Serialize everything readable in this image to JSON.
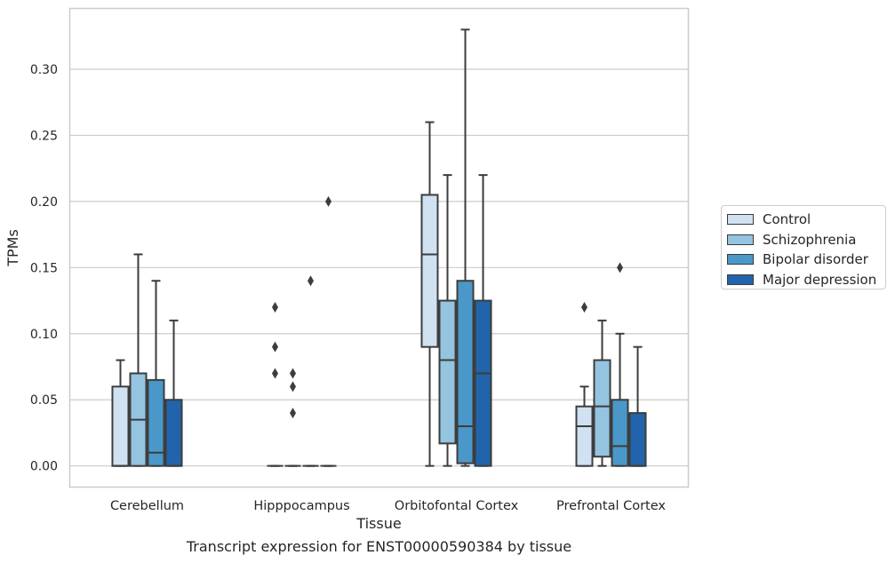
{
  "caption": "Transcript expression for ENST00000590384 by tissue",
  "chart_data": {
    "type": "box",
    "title": "",
    "xlabel": "Tissue",
    "ylabel": "TPMs",
    "ylim": [
      -0.016,
      0.346
    ],
    "yticks": [
      0.0,
      0.05,
      0.1,
      0.15,
      0.2,
      0.25,
      0.3
    ],
    "ytick_labels": [
      "0.00",
      "0.05",
      "0.10",
      "0.15",
      "0.20",
      "0.25",
      "0.30"
    ],
    "grid": true,
    "legend_position": "right",
    "categories": [
      "Cerebellum",
      "Hipppocampus",
      "Orbitofontal Cortex",
      "Prefrontal Cortex"
    ],
    "series": [
      {
        "name": "Control",
        "color": "#d0e1f2",
        "boxes": [
          {
            "whislo": 0.0,
            "q1": 0.0,
            "med": 0.0,
            "q3": 0.06,
            "whishi": 0.08,
            "fliers": []
          },
          {
            "whislo": 0.0,
            "q1": 0.0,
            "med": 0.0,
            "q3": 0.0,
            "whishi": 0.0,
            "fliers": [
              0.07,
              0.09,
              0.12
            ]
          },
          {
            "whislo": 0.0,
            "q1": 0.09,
            "med": 0.16,
            "q3": 0.205,
            "whishi": 0.26,
            "fliers": []
          },
          {
            "whislo": 0.0,
            "q1": 0.0,
            "med": 0.03,
            "q3": 0.045,
            "whishi": 0.06,
            "fliers": [
              0.12
            ]
          }
        ]
      },
      {
        "name": "Schizophrenia",
        "color": "#94c4df",
        "boxes": [
          {
            "whislo": 0.0,
            "q1": 0.0,
            "med": 0.035,
            "q3": 0.07,
            "whishi": 0.16,
            "fliers": []
          },
          {
            "whislo": 0.0,
            "q1": 0.0,
            "med": 0.0,
            "q3": 0.0,
            "whishi": 0.0,
            "fliers": [
              0.04,
              0.06,
              0.07
            ]
          },
          {
            "whislo": 0.0,
            "q1": 0.017,
            "med": 0.08,
            "q3": 0.125,
            "whishi": 0.22,
            "fliers": []
          },
          {
            "whislo": 0.0,
            "q1": 0.007,
            "med": 0.045,
            "q3": 0.08,
            "whishi": 0.11,
            "fliers": []
          }
        ]
      },
      {
        "name": "Bipolar disorder",
        "color": "#4a98c9",
        "boxes": [
          {
            "whislo": 0.0,
            "q1": 0.0,
            "med": 0.01,
            "q3": 0.065,
            "whishi": 0.14,
            "fliers": []
          },
          {
            "whislo": 0.0,
            "q1": 0.0,
            "med": 0.0,
            "q3": 0.0,
            "whishi": 0.0,
            "fliers": [
              0.14
            ]
          },
          {
            "whislo": 0.0,
            "q1": 0.002,
            "med": 0.03,
            "q3": 0.14,
            "whishi": 0.33,
            "fliers": []
          },
          {
            "whislo": 0.0,
            "q1": 0.0,
            "med": 0.015,
            "q3": 0.05,
            "whishi": 0.1,
            "fliers": [
              0.15
            ]
          }
        ]
      },
      {
        "name": "Major depression",
        "color": "#2164ab",
        "boxes": [
          {
            "whislo": 0.0,
            "q1": 0.0,
            "med": 0.0,
            "q3": 0.05,
            "whishi": 0.11,
            "fliers": []
          },
          {
            "whislo": 0.0,
            "q1": 0.0,
            "med": 0.0,
            "q3": 0.0,
            "whishi": 0.0,
            "fliers": [
              0.2
            ]
          },
          {
            "whislo": 0.0,
            "q1": 0.0,
            "med": 0.07,
            "q3": 0.125,
            "whishi": 0.22,
            "fliers": []
          },
          {
            "whislo": 0.0,
            "q1": 0.0,
            "med": 0.0,
            "q3": 0.04,
            "whishi": 0.09,
            "fliers": []
          }
        ]
      }
    ]
  }
}
